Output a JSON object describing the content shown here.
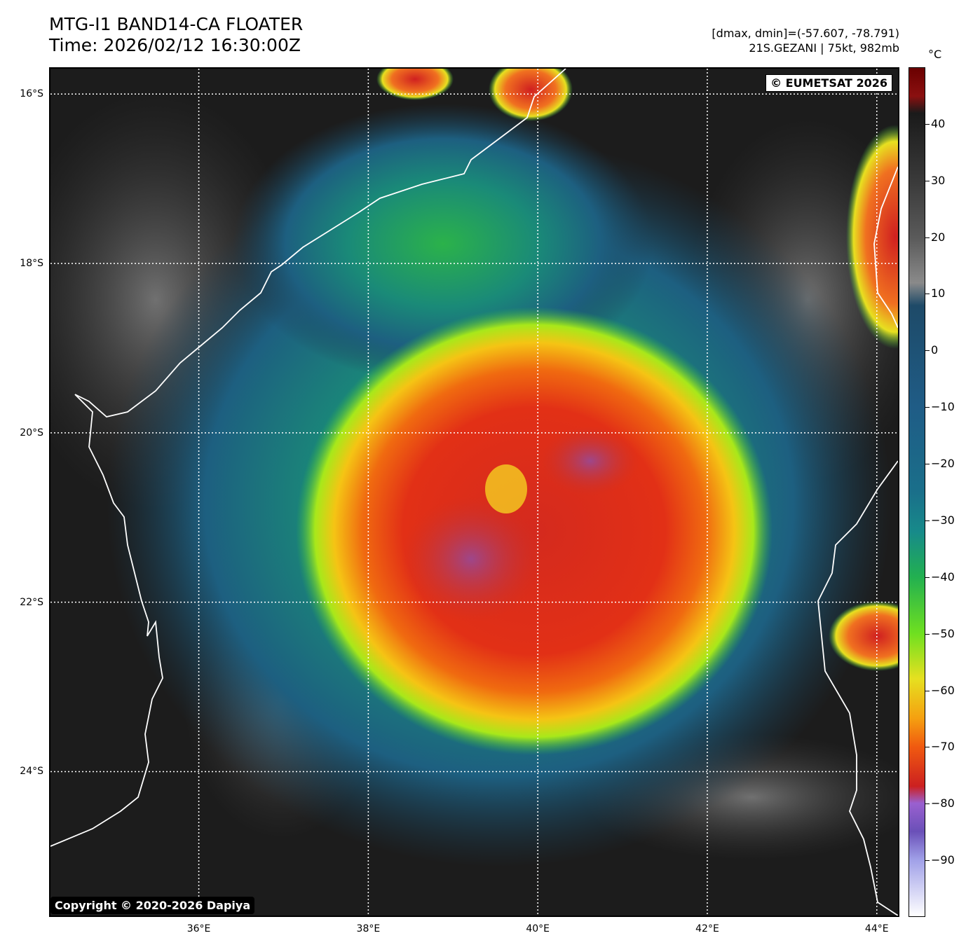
{
  "header": {
    "title_line1": "MTG-I1 BAND14-CA FLOATER",
    "title_line2": "Time: 2026/02/12 16:30:00Z",
    "meta_line1": "[dmax, dmin]=(-57.607, -78.791)",
    "meta_line2": "21S.GEZANI | 75kt, 982mb"
  },
  "map": {
    "credit": "© EUMETSAT 2026",
    "copyright": "Copyright © 2020-2026 Dapiya",
    "lat_ticks": [
      "16°S",
      "18°S",
      "20°S",
      "22°S",
      "24°S"
    ],
    "lon_ticks": [
      "36°E",
      "38°E",
      "40°E",
      "42°E",
      "44°E"
    ],
    "extent": {
      "lon_min": 34.25,
      "lon_max": 44.25,
      "lat_min": -25.7,
      "lat_max": -15.7
    },
    "lat_values": [
      -16,
      -18,
      -20,
      -22,
      -24
    ],
    "lon_values": [
      36,
      38,
      40,
      42,
      44
    ],
    "storm_center": {
      "lon": 39.5,
      "lat": -20.7
    },
    "colors": {
      "background": "#1c1c1c",
      "coastline": "#ffffff",
      "grid": "#ffffff"
    }
  },
  "colorbar": {
    "unit": "°C",
    "labels": [
      "40",
      "30",
      "20",
      "10",
      "0",
      "−10",
      "−20",
      "−30",
      "−40",
      "−50",
      "−60",
      "−70",
      "−80",
      "−90"
    ],
    "values": [
      40,
      30,
      20,
      10,
      0,
      -10,
      -20,
      -30,
      -40,
      -50,
      -60,
      -70,
      -80,
      -90
    ],
    "vmin": -100,
    "vmax": 50
  }
}
